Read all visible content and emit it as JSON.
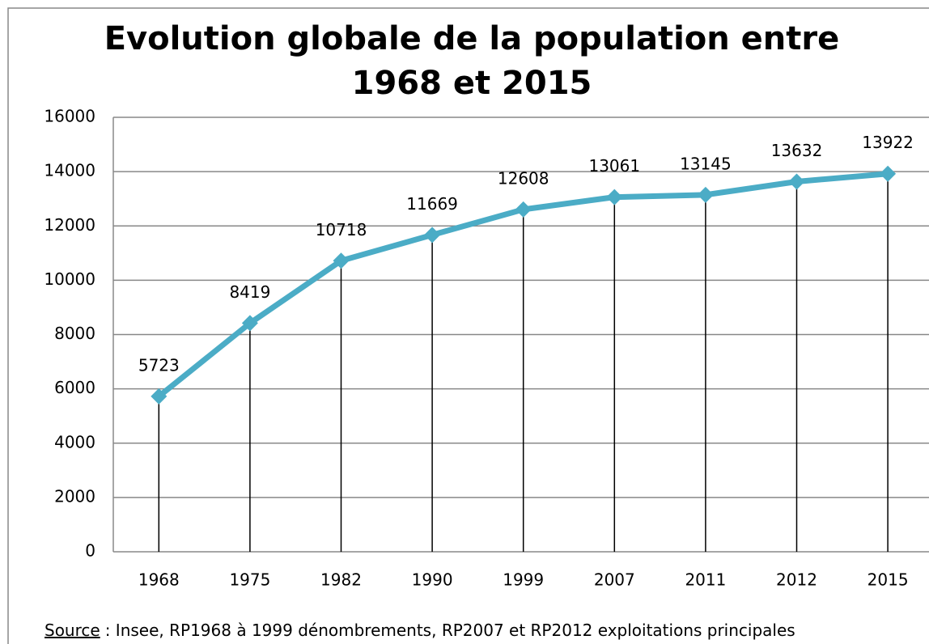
{
  "chart_data": {
    "type": "line",
    "title": [
      "Evolution globale de la population entre",
      "1968 et 2015"
    ],
    "categories": [
      "1968",
      "1975",
      "1982",
      "1990",
      "1999",
      "2007",
      "2011",
      "2012",
      "2015"
    ],
    "values": [
      5723,
      8419,
      10718,
      11669,
      12608,
      13061,
      13145,
      13632,
      13922
    ],
    "color": "#4bacc6",
    "ylim": [
      0,
      16000
    ],
    "yticks": [
      0,
      2000,
      4000,
      6000,
      8000,
      10000,
      12000,
      14000,
      16000
    ],
    "grid": true,
    "drop_lines": true,
    "source": {
      "label": "Source",
      "text": ": Insee, RP1968 à 1999 dénombrements, RP2007 et RP2012 exploitations principales"
    }
  }
}
